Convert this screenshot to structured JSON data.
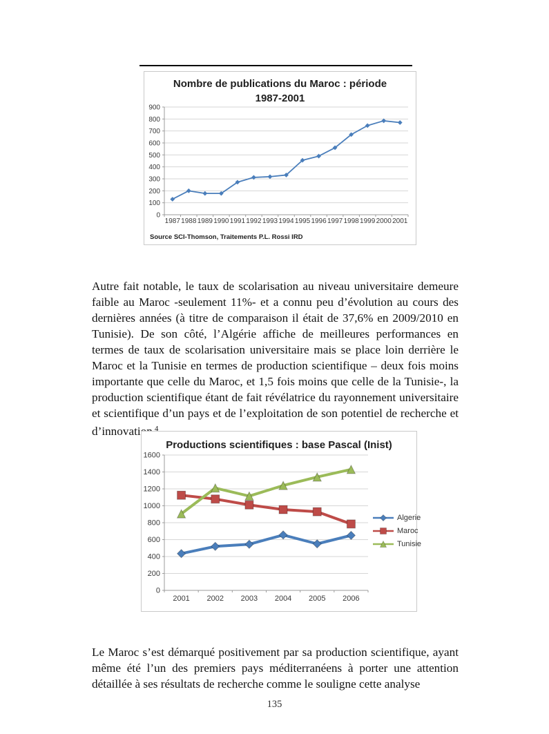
{
  "page": {
    "number": "135"
  },
  "paragraphs": {
    "p1": {
      "text": "Autre fait notable, le taux de scolarisation au niveau universitaire demeure faible au Maroc -seulement 11%- et a connu peu d’évolution au cours des dernières années (à titre de comparaison il était de 37,6% en 2009/2010 en Tunisie). De son côté, l’Algérie affiche de meilleures performances en termes de taux de scolarisation universitaire mais se place loin derrière le Maroc et la Tunisie en termes de production scientifique – deux fois moins importante que celle du Maroc, et 1,5 fois moins que celle de la Tunisie-, la production scientifique étant de fait révélatrice du rayonnement universitaire et scientifique d’un pays et de l’exploitation de son potentiel de recherche et d’innovation",
      "footnote_ref": "4",
      "after": " ."
    },
    "p2": {
      "text": "Le Maroc s’est démarqué positivement par sa production scientifique, ayant même été l’un des premiers pays méditerranéens à porter une attention détaillée à ses résultats de recherche comme le souligne cette analyse"
    }
  },
  "chart_data": [
    {
      "type": "line",
      "title": "Nombre de publications du Maroc : période 1987-2001",
      "title_lines": [
        "Nombre de publications du Maroc : période",
        "1987-2001"
      ],
      "source": "Source SCI-Thomson, Traitements P.L. Rossi IRD",
      "categories": [
        "1987",
        "1988",
        "1989",
        "1990",
        "1991",
        "1992",
        "1993",
        "1994",
        "1995",
        "1996",
        "1997",
        "1998",
        "1999",
        "2000",
        "2001"
      ],
      "series": [
        {
          "name": "Maroc",
          "color": "#4a7ebb",
          "marker": "diamond",
          "values": [
            130,
            200,
            178,
            178,
            272,
            312,
            318,
            332,
            455,
            490,
            560,
            670,
            745,
            785,
            770
          ]
        }
      ],
      "xlabel": "",
      "ylabel": "",
      "ylim": [
        0,
        900
      ],
      "ystep": 100,
      "grid": true,
      "legend": false
    },
    {
      "type": "line",
      "title": "Productions scientifiques : base Pascal (Inist)",
      "categories": [
        "2001",
        "2002",
        "2003",
        "2004",
        "2005",
        "2006"
      ],
      "series": [
        {
          "name": "Algerie",
          "color": "#4a7ebb",
          "marker": "diamond",
          "values": [
            435,
            520,
            545,
            655,
            550,
            650
          ]
        },
        {
          "name": "Maroc",
          "color": "#be4b48",
          "marker": "square",
          "values": [
            1125,
            1080,
            1010,
            955,
            930,
            785
          ]
        },
        {
          "name": "Tunisie",
          "color": "#9bbb59",
          "marker": "triangle",
          "values": [
            905,
            1210,
            1115,
            1240,
            1340,
            1430
          ]
        }
      ],
      "xlabel": "",
      "ylabel": "",
      "ylim": [
        0,
        1600
      ],
      "ystep": 200,
      "grid": true,
      "legend": true,
      "legend_position": "right"
    }
  ]
}
